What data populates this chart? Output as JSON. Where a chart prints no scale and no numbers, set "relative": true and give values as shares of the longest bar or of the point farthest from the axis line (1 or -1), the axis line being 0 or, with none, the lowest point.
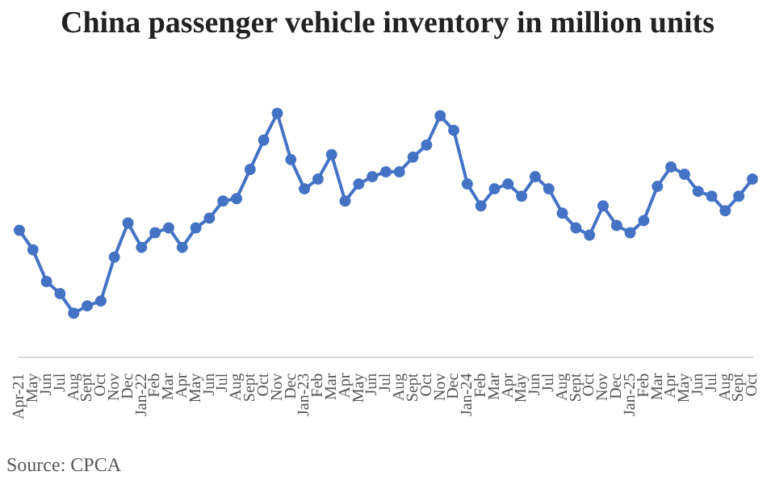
{
  "chart_data": {
    "type": "line",
    "title": "China passenger vehicle inventory in million units",
    "relative": true,
    "categories": [
      "Apr-21",
      "May",
      "Jun",
      "Jul",
      "Aug",
      "Sept",
      "Oct",
      "Nov",
      "Dec",
      "Jan-22",
      "Feb",
      "Mar",
      "Apr",
      "May",
      "Jun",
      "Jul",
      "Aug",
      "Sept",
      "Oct",
      "Nov",
      "Dec",
      "Jan-23",
      "Feb",
      "Mar",
      "Apr",
      "May",
      "Jun",
      "Jul",
      "Aug",
      "Sept",
      "Oct",
      "Nov",
      "Dec",
      "Jan-24",
      "Feb",
      "Mar",
      "Apr",
      "May",
      "Jun",
      "Jul",
      "Aug",
      "Sept",
      "Oct",
      "Nov",
      "Dec",
      "Jan-25",
      "Feb",
      "Mar",
      "Apr",
      "May",
      "Jun",
      "Jul",
      "Aug",
      "Sept",
      "Oct"
    ],
    "series": [
      {
        "color": "#4472c4",
        "values": [
          0.52,
          0.44,
          0.31,
          0.26,
          0.18,
          0.21,
          0.23,
          0.41,
          0.55,
          0.45,
          0.51,
          0.53,
          0.45,
          0.53,
          0.57,
          0.64,
          0.65,
          0.77,
          0.89,
          1,
          0.81,
          0.69,
          0.73,
          0.83,
          0.64,
          0.71,
          0.74,
          0.76,
          0.76,
          0.82,
          0.87,
          0.99,
          0.93,
          0.71,
          0.62,
          0.69,
          0.71,
          0.66,
          0.74,
          0.69,
          0.59,
          0.53,
          0.5,
          0.62,
          0.54,
          0.51,
          0.56,
          0.7,
          0.78,
          0.75,
          0.68,
          0.66,
          0.6,
          0.66,
          0.73
        ]
      }
    ],
    "marker": "circle",
    "line_style": "solid",
    "legend": false,
    "annotations": [
      "Source: CPCA"
    ]
  }
}
